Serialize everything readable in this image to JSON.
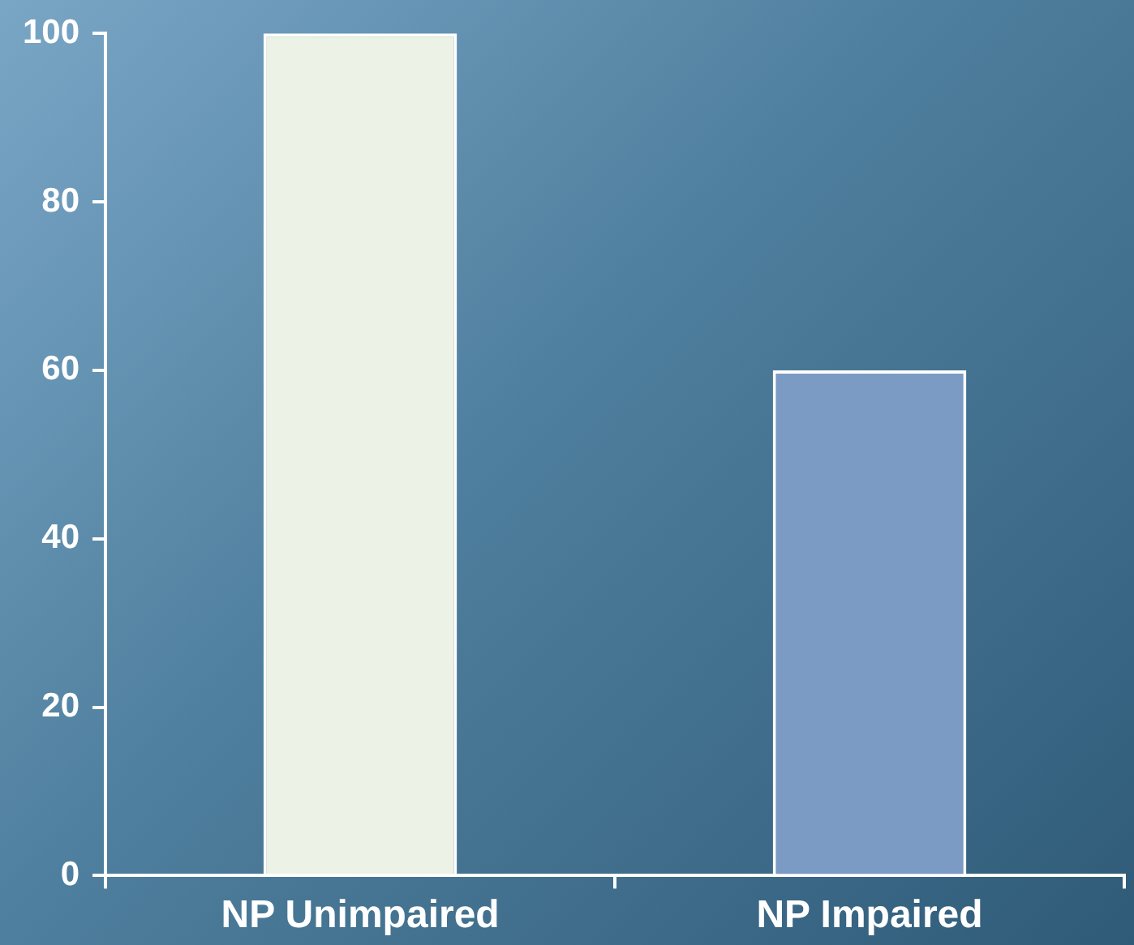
{
  "chart_data": {
    "type": "bar",
    "categories": [
      "NP Unimpaired",
      "NP Impaired"
    ],
    "values": [
      100,
      60
    ],
    "colors": [
      "#edf2e6",
      "#7b9bc4"
    ],
    "ylim": [
      0,
      100
    ],
    "yticks": [
      0,
      20,
      40,
      60,
      80,
      100
    ],
    "grid": false,
    "legend": false
  }
}
